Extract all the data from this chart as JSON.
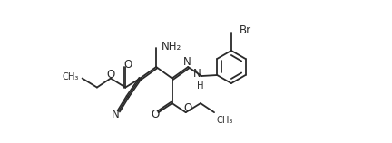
{
  "background_color": "#ffffff",
  "line_color": "#2a2a2a",
  "line_width": 1.3,
  "font_size": 8.5,
  "xlim": [
    -0.3,
    10.5
  ],
  "ylim": [
    1.5,
    7.8
  ]
}
